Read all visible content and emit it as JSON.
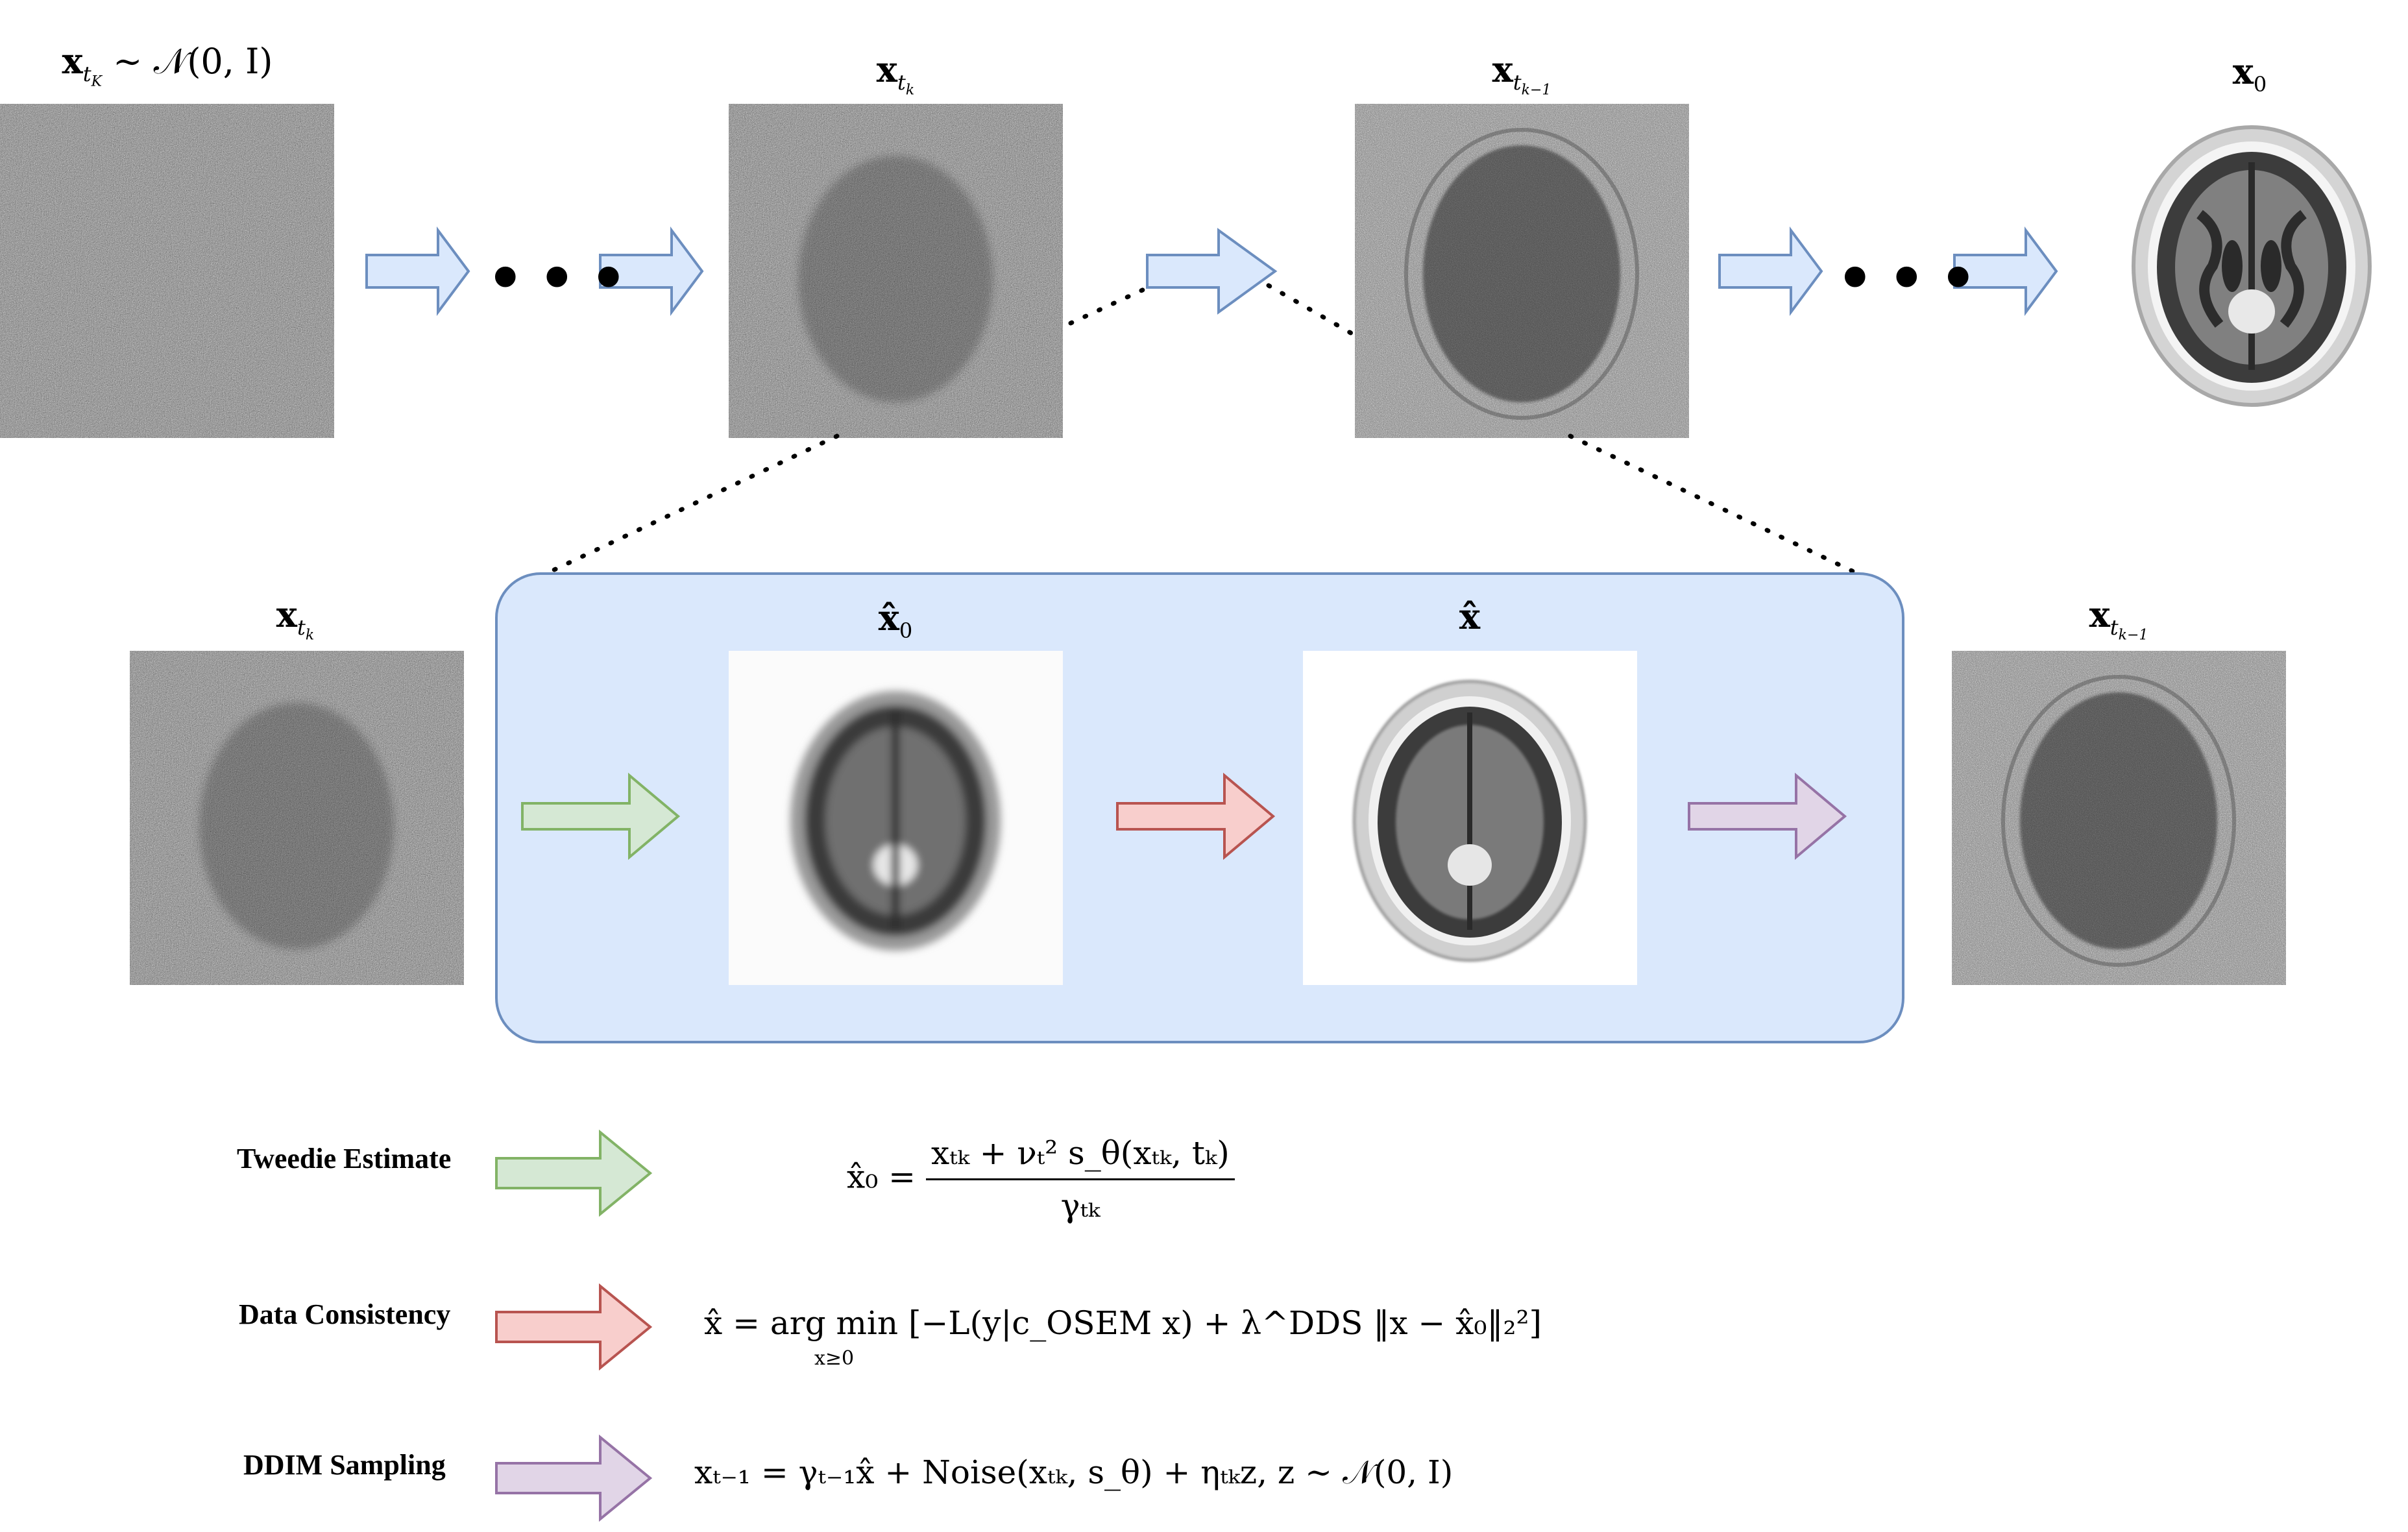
{
  "top_row": {
    "label_noise_input": "x",
    "label_noise_sub": "t",
    "label_noise_subsub": "K",
    "label_noise_rest": " ∼ 𝒩(0, I)",
    "label_xtk": "x",
    "label_xtk_sub": "t",
    "label_xtk_subsub": "k",
    "label_xtk1": "x",
    "label_xtk1_sub": "t",
    "label_xtk1_subsub": "k−1",
    "label_x0": "x",
    "label_x0_sub": "0",
    "ellipsis": "•••"
  },
  "inset": {
    "label_left": "x",
    "label_left_sub": "t",
    "label_left_subsub": "k",
    "label_x0hat": "x̂",
    "label_x0hat_sub": "0",
    "label_xhat": "x̂",
    "label_right": "x",
    "label_right_sub": "t",
    "label_right_subsub": "k−1"
  },
  "legend": [
    {
      "label": "Tweedie Estimate",
      "color_fill": "#d5e8d4",
      "color_stroke": "#82b366",
      "formula_lhs": "x̂₀ = ",
      "formula_num": "xₜₖ + νₜ² s_θ(xₜₖ, tₖ)",
      "formula_den": "γₜₖ"
    },
    {
      "label": "Data Consistency",
      "color_fill": "#f8cecc",
      "color_stroke": "#b85450",
      "formula": "x̂ = arg min [−L(y|c_OSEM x) + λ^DDS ‖x − x̂₀‖₂²]",
      "formula_sub": "x≥0"
    },
    {
      "label": "DDIM Sampling",
      "color_fill": "#e1d5e7",
      "color_stroke": "#9673a6",
      "formula": "xₜ₋₁ = γₜ₋₁x̂ + Noise(xₜₖ, s_θ) + ηₜₖz,   z ∼ 𝒩(0, I)"
    }
  ],
  "colors": {
    "blue_arrow_fill": "#dae8fc",
    "blue_arrow_stroke": "#6c8ebf",
    "panel_fill": "#dae8fc",
    "panel_stroke": "#6c8ebf"
  }
}
